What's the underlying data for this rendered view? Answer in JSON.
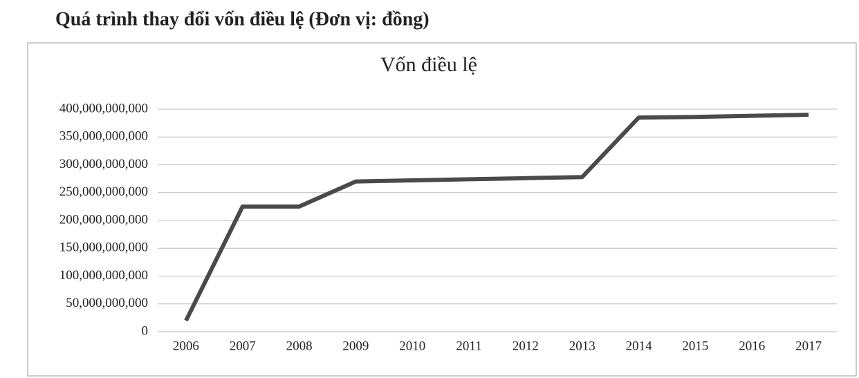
{
  "page_title": "Quá trình thay đổi vốn điều lệ (Đơn vị: đồng)",
  "chart_data": {
    "type": "line",
    "title": "Vốn điều lệ",
    "categories": [
      "2006",
      "2007",
      "2008",
      "2009",
      "2010",
      "2011",
      "2012",
      "2013",
      "2014",
      "2015",
      "2016",
      "2017"
    ],
    "series": [
      {
        "name": "Vốn điều lệ",
        "color": "#4a4a4a",
        "values": [
          20000000000,
          225000000000,
          225000000000,
          270000000000,
          272000000000,
          274000000000,
          276000000000,
          278000000000,
          385000000000,
          386000000000,
          388000000000,
          390000000000
        ]
      }
    ],
    "ylim": [
      0,
      400000000000
    ],
    "yticks": [
      0,
      {
        "value": 50000000000,
        "label": "50,000,000,000"
      },
      {
        "value": 100000000000,
        "label": "100,000,000,000"
      },
      {
        "value": 150000000000,
        "label": "150,000,000,000"
      },
      {
        "value": 200000000000,
        "label": "200,000,000,000"
      },
      {
        "value": 250000000000,
        "label": "250,000,000,000"
      },
      {
        "value": 300000000000,
        "label": "300,000,000,000"
      },
      {
        "value": 350000000000,
        "label": "350,000,000,000"
      },
      {
        "value": 400000000000,
        "label": "400,000,000,000"
      }
    ],
    "grid": true
  }
}
